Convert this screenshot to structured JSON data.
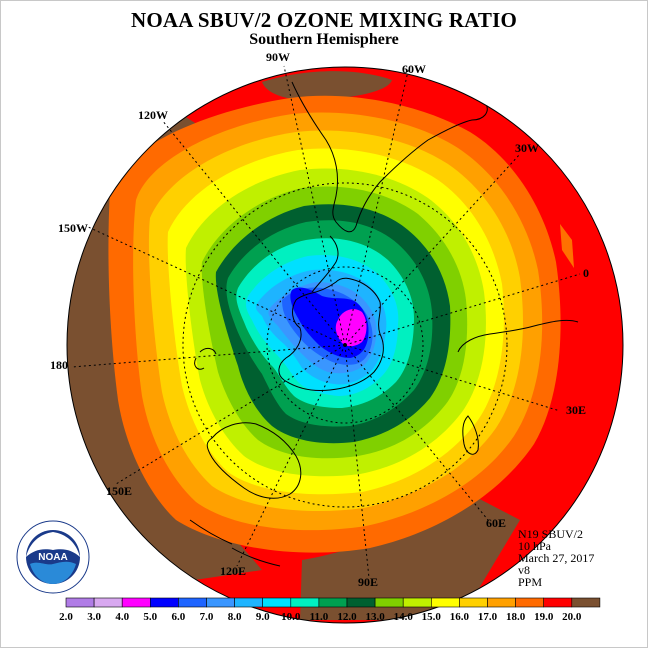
{
  "title": "NOAA SBUV/2 OZONE MIXING RATIO",
  "subtitle": "Southern Hemisphere",
  "info": {
    "instrument": "N19 SBUV/2",
    "level": "10 hPa",
    "date": "March 27, 2017",
    "version": "v8",
    "units": "PPM"
  },
  "longitude_labels": [
    "90W",
    "60W",
    "30W",
    "0",
    "30E",
    "60E",
    "90E",
    "120E",
    "150E",
    "180",
    "150W",
    "120W"
  ],
  "logo": {
    "text": "NOAA",
    "ring_text": "NATIONAL OCEANIC AND ATMOSPHERIC ADMINISTRATION · U.S. DEPARTMENT OF COMMERCE"
  },
  "colorbar": {
    "ticks": [
      "2.0",
      "3.0",
      "4.0",
      "5.0",
      "6.0",
      "7.0",
      "8.0",
      "9.0",
      "10.0",
      "11.0",
      "12.0",
      "13.0",
      "14.0",
      "15.0",
      "16.0",
      "17.0",
      "18.0",
      "19.0",
      "20.0"
    ],
    "colors": [
      "#b07ce6",
      "#d8a8f0",
      "#ff00ff",
      "#0000ff",
      "#1e64ff",
      "#3a96ff",
      "#1eb4ff",
      "#00e0ff",
      "#00f0c0",
      "#00a050",
      "#006030",
      "#80d000",
      "#c0f000",
      "#ffff00",
      "#ffd000",
      "#ffa000",
      "#ff6a00",
      "#ff0000",
      "#7a5030"
    ]
  }
}
